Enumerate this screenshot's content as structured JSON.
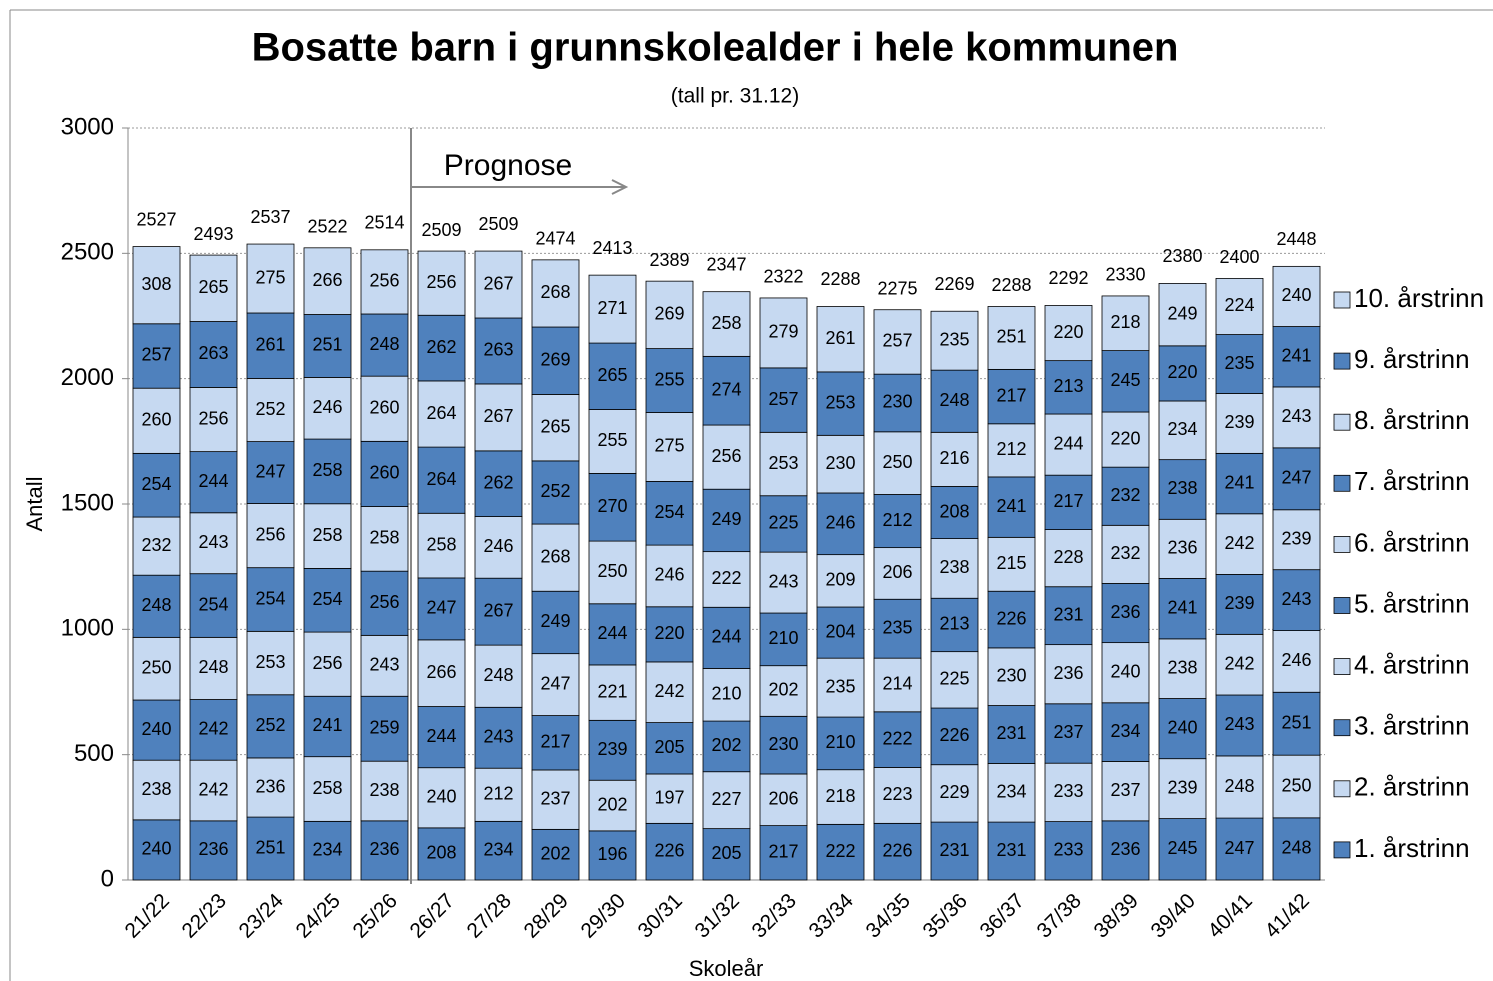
{
  "chart_data": {
    "type": "stacked_bar",
    "title": "Bosatte barn i grunnskolealder i hele kommunen",
    "subtitle": "(tall pr. 31.12)",
    "annotation": "Prognose",
    "xlabel": "Skoleår",
    "ylabel": "Antall",
    "ylim": [
      0,
      3000
    ],
    "yticks": [
      0,
      500,
      1000,
      1500,
      2000,
      2500,
      3000
    ],
    "grid": true,
    "legend": "right",
    "categories": [
      "21/22",
      "22/23",
      "23/24",
      "24/25",
      "25/26",
      "26/27",
      "27/28",
      "28/29",
      "29/30",
      "30/31",
      "31/32",
      "32/33",
      "33/34",
      "34/35",
      "35/36",
      "36/37",
      "37/38",
      "38/39",
      "39/40",
      "40/41",
      "41/42"
    ],
    "series": [
      {
        "name": "1. årstrinn",
        "color": "#4f81bd",
        "values": [
          240,
          236,
          251,
          234,
          236,
          208,
          234,
          202,
          196,
          226,
          205,
          217,
          222,
          226,
          231,
          231,
          233,
          236,
          245,
          247,
          248
        ]
      },
      {
        "name": "2. årstrinn",
        "color": "#c6d9f1",
        "values": [
          238,
          242,
          236,
          258,
          238,
          240,
          212,
          237,
          202,
          197,
          227,
          206,
          218,
          223,
          229,
          234,
          233,
          237,
          239,
          248,
          250
        ]
      },
      {
        "name": "3. årstrinn",
        "color": "#4f81bd",
        "values": [
          240,
          242,
          252,
          241,
          259,
          244,
          243,
          217,
          239,
          205,
          202,
          230,
          210,
          222,
          226,
          231,
          237,
          234,
          240,
          243,
          251
        ]
      },
      {
        "name": "4. årstrinn",
        "color": "#c6d9f1",
        "values": [
          250,
          248,
          253,
          256,
          243,
          266,
          248,
          247,
          221,
          242,
          210,
          202,
          235,
          214,
          225,
          230,
          236,
          240,
          238,
          242,
          246
        ]
      },
      {
        "name": "5. årstrinn",
        "color": "#4f81bd",
        "values": [
          248,
          254,
          254,
          254,
          256,
          247,
          267,
          249,
          244,
          220,
          244,
          210,
          204,
          235,
          213,
          226,
          231,
          236,
          241,
          239,
          243
        ]
      },
      {
        "name": "6. årstrinn",
        "color": "#c6d9f1",
        "values": [
          232,
          243,
          256,
          258,
          258,
          258,
          246,
          268,
          250,
          246,
          222,
          243,
          209,
          206,
          238,
          215,
          228,
          232,
          236,
          242,
          239
        ]
      },
      {
        "name": "7. årstrinn",
        "color": "#4f81bd",
        "values": [
          254,
          244,
          247,
          258,
          260,
          264,
          262,
          252,
          270,
          254,
          249,
          225,
          246,
          212,
          208,
          241,
          217,
          232,
          238,
          241,
          247
        ]
      },
      {
        "name": "8. årstrinn",
        "color": "#c6d9f1",
        "values": [
          260,
          256,
          252,
          246,
          260,
          264,
          267,
          265,
          255,
          275,
          256,
          253,
          230,
          250,
          216,
          212,
          244,
          220,
          234,
          239,
          243
        ]
      },
      {
        "name": "9. årstrinn",
        "color": "#4f81bd",
        "values": [
          257,
          263,
          261,
          251,
          248,
          262,
          263,
          269,
          265,
          255,
          274,
          257,
          253,
          230,
          248,
          217,
          213,
          245,
          220,
          235,
          241
        ]
      },
      {
        "name": "10. årstrinn",
        "color": "#c6d9f1",
        "values": [
          308,
          265,
          275,
          266,
          256,
          256,
          267,
          268,
          271,
          269,
          258,
          279,
          261,
          257,
          235,
          251,
          220,
          218,
          249,
          224,
          240
        ]
      }
    ],
    "totals": [
      2527,
      2493,
      2537,
      2522,
      2514,
      2509,
      2509,
      2474,
      2413,
      2389,
      2347,
      2322,
      2288,
      2275,
      2269,
      2288,
      2292,
      2330,
      2380,
      2400,
      2448
    ]
  }
}
